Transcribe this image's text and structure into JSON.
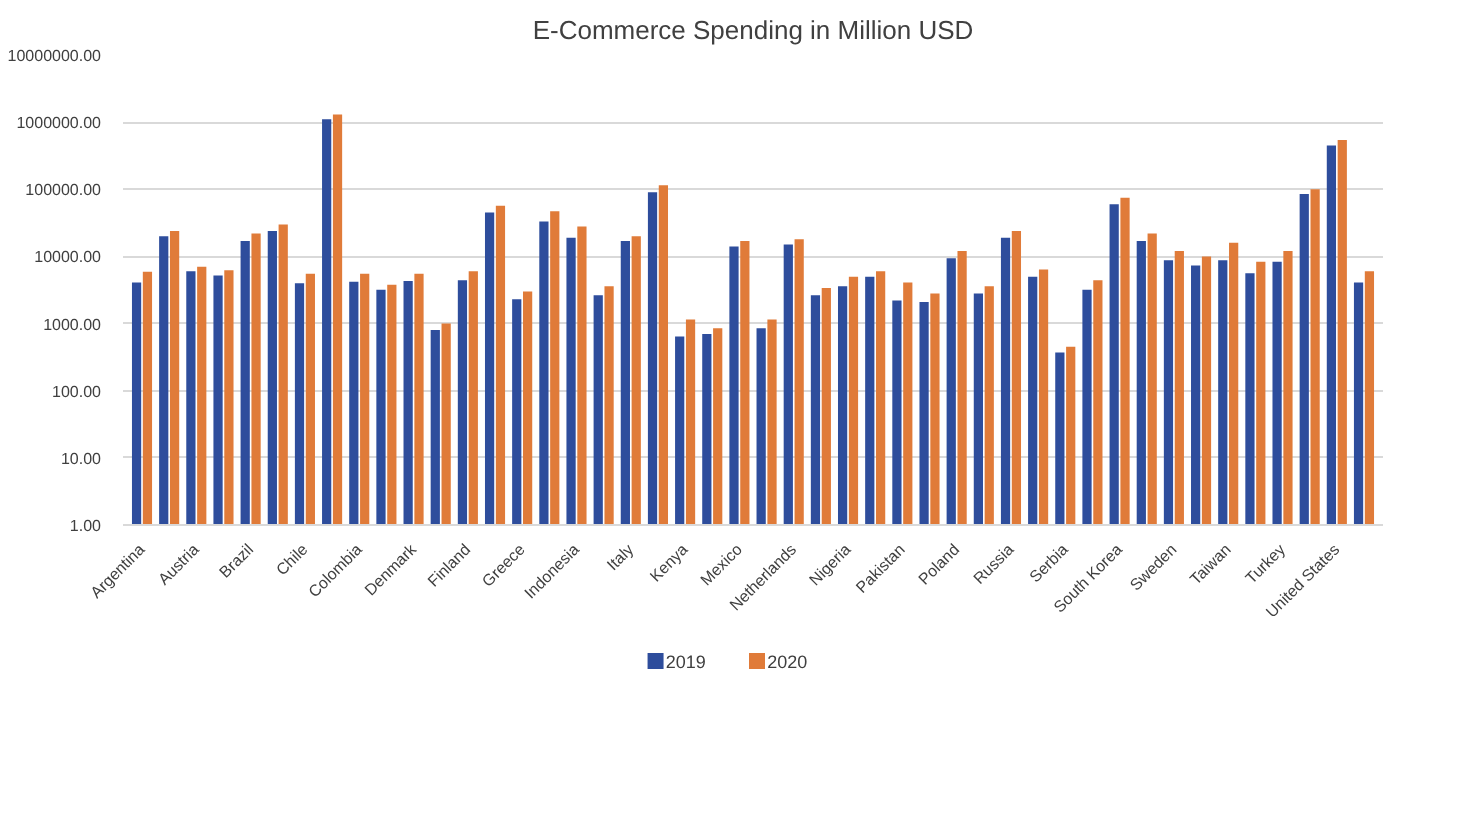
{
  "chart_data": {
    "type": "bar",
    "title": "E-Commerce Spending in Million USD",
    "categories": [
      "Argentina",
      null,
      "Austria",
      null,
      "Brazil",
      null,
      "Chile",
      null,
      "Colombia",
      null,
      "Denmark",
      null,
      "Finland",
      null,
      "Greece",
      null,
      "Indonesia",
      null,
      "Italy",
      null,
      "Kenya",
      null,
      "Mexico",
      null,
      "Netherlands",
      null,
      "Nigeria",
      null,
      "Pakistan",
      null,
      "Poland",
      null,
      "Russia",
      null,
      "Serbia",
      null,
      "South Korea",
      null,
      "Sweden",
      null,
      "Taiwan",
      null,
      "Turkey",
      null,
      "United States",
      null
    ],
    "series": [
      {
        "name": "2019",
        "color": "#2e4d9c",
        "values": [
          4100,
          20000,
          6000,
          5200,
          17000,
          24000,
          4000,
          1100000,
          4200,
          3200,
          4300,
          800,
          4400,
          45000,
          2300,
          33000,
          19000,
          2650,
          17000,
          90000,
          640,
          700,
          14000,
          850,
          15000,
          2650,
          3600,
          5000,
          2200,
          2100,
          9400,
          2800,
          19000,
          5000,
          370,
          3200,
          60000,
          17000,
          8800,
          7300,
          8800,
          5600,
          8300,
          85000,
          450000,
          4100
        ]
      },
      {
        "name": "2020",
        "color": "#e07b39",
        "values": [
          5900,
          24000,
          7000,
          6200,
          22000,
          30000,
          5500,
          1300000,
          5500,
          3800,
          5500,
          1000,
          6000,
          57000,
          3000,
          47000,
          28000,
          3600,
          20000,
          115000,
          1150,
          850,
          17000,
          1150,
          18000,
          3400,
          5000,
          6000,
          4100,
          2800,
          12000,
          3600,
          24000,
          6400,
          450,
          4400,
          75000,
          22000,
          12000,
          10000,
          16000,
          8300,
          12000,
          100000,
          540000,
          6000
        ]
      }
    ],
    "log": "y",
    "ylim": [
      1,
      10000000
    ],
    "yticks": [
      {
        "value": 1,
        "label": "1.00"
      },
      {
        "value": 10,
        "label": "10.00"
      },
      {
        "value": 100,
        "label": "100.00"
      },
      {
        "value": 1000,
        "label": "1000.00"
      },
      {
        "value": 10000,
        "label": "10000.00"
      },
      {
        "value": 100000,
        "label": "100000.00"
      },
      {
        "value": 1000000,
        "label": "1000000.00"
      },
      {
        "value": 10000000,
        "label": "10000000.00"
      }
    ],
    "grid": "y",
    "legend": "bottom"
  }
}
